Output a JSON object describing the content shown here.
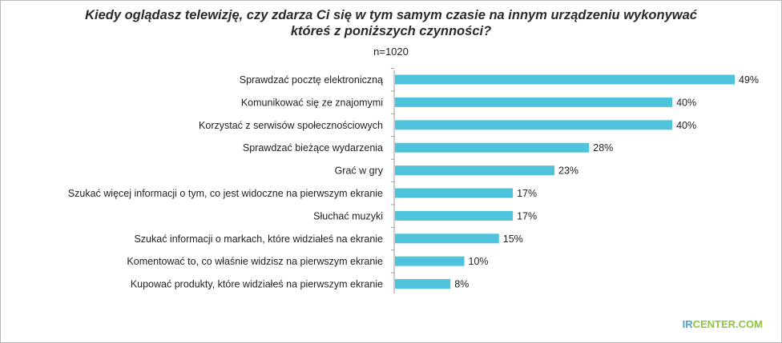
{
  "header": {
    "title_line1": "Kiedy oglądasz telewizję, czy zdarza Ci się w tym samym czasie na innym urządzeniu wykonywać",
    "title_line2": "któreś z poniższych czynności?",
    "sample": "n=1020"
  },
  "brand": {
    "ir": "IR",
    "rest": "CENTER.COM"
  },
  "colors": {
    "bar": "#4fc3dc",
    "axis": "#9a9a9a",
    "text": "#222222"
  },
  "chart_data": {
    "type": "bar",
    "orientation": "horizontal",
    "categories": [
      "Sprawdzać pocztę elektroniczną",
      "Komunikować się ze znajomymi",
      "Korzystać z serwisów społecznościowych",
      "Sprawdzać bieżące wydarzenia",
      "Grać w gry",
      "Szukać więcej informacji o tym, co jest widoczne na pierwszym ekranie",
      "Słuchać muzyki",
      "Szukać informacji o markach, które widziałeś na ekranie",
      "Komentować to, co właśnie widzisz na pierwszym ekranie",
      "Kupować produkty, które widziałeś na pierwszym ekranie"
    ],
    "values": [
      49,
      40,
      40,
      28,
      23,
      17,
      17,
      15,
      10,
      8
    ],
    "labels": [
      "49%",
      "40%",
      "40%",
      "28%",
      "23%",
      "17%",
      "17%",
      "15%",
      "10%",
      "8%"
    ],
    "unit": "%",
    "xlim": [
      0,
      49
    ],
    "grid": false,
    "legend": "none"
  }
}
